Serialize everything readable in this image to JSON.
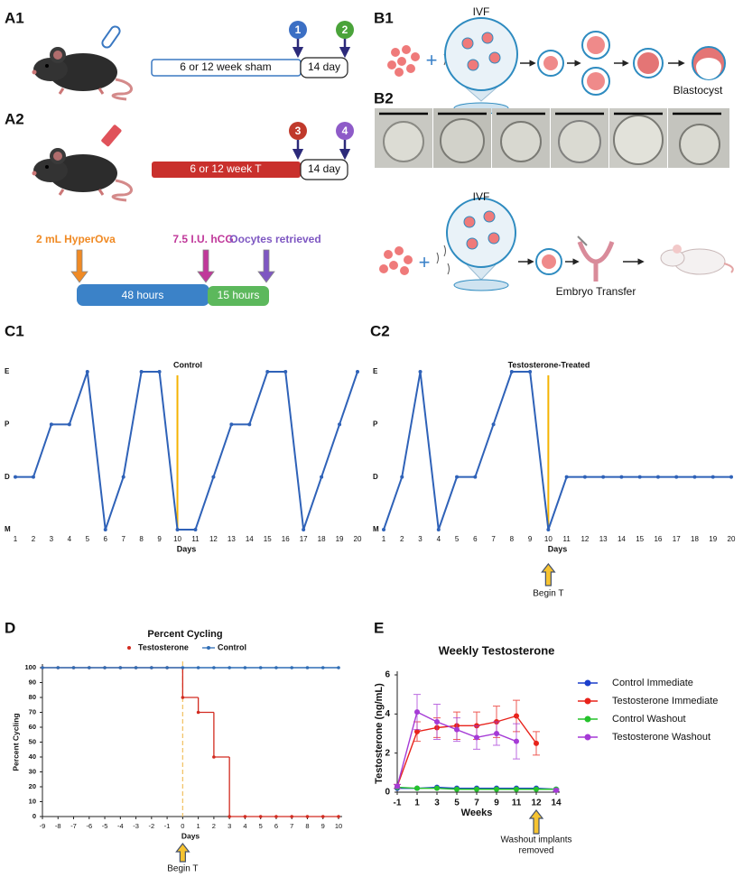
{
  "panels": {
    "a1": "A1",
    "a2": "A2",
    "b1": "B1",
    "b2": "B2",
    "c1": "C1",
    "c2": "C2",
    "d": "D",
    "e": "E"
  },
  "timeline": {
    "sham": "6 or 12 week sham",
    "treated": "6 or 12 week T",
    "washout_sham": "14 day",
    "washout_treated": "14 day",
    "steps": [
      "1",
      "2",
      "3",
      "4"
    ]
  },
  "superovulation": {
    "hyperova": "2 mL HyperOva",
    "hcg": "7.5 I.U. hCG",
    "retrieval": "Oocytes retrieved",
    "phase1": "48 hours",
    "phase2": "15 hours"
  },
  "ivf": {
    "top_label": "IVF",
    "blastocyst": "Blastocyst",
    "bottom_label": "IVF",
    "transfer": "Embryo Transfer"
  },
  "chart_data": [
    {
      "type": "line",
      "title": "Control",
      "x": [
        1,
        2,
        3,
        4,
        5,
        6,
        7,
        8,
        9,
        10,
        11,
        12,
        13,
        14,
        15,
        16,
        17,
        18,
        19,
        20
      ],
      "values": [
        1,
        1,
        2,
        2,
        3,
        0,
        1,
        3,
        3,
        0,
        0,
        1,
        2,
        2,
        3,
        3,
        0,
        1,
        2,
        3
      ],
      "color": "#2f62b8",
      "xlim": [
        1,
        20
      ],
      "xticks": [
        1,
        2,
        3,
        4,
        5,
        6,
        7,
        8,
        9,
        10,
        11,
        12,
        13,
        14,
        15,
        16,
        17,
        18,
        19,
        20
      ],
      "ylim": [
        0,
        3
      ],
      "yticks": [
        {
          "value": 0,
          "label": "M"
        },
        {
          "value": 1,
          "label": "D"
        },
        {
          "value": 2,
          "label": "P"
        },
        {
          "value": 3,
          "label": "E"
        }
      ],
      "xlabel": "Days",
      "marker_x": 10,
      "marker_color": "#f5b301"
    },
    {
      "type": "line",
      "title": "Testosterone-Treated",
      "x": [
        1,
        2,
        3,
        4,
        5,
        6,
        7,
        8,
        9,
        10,
        11,
        12,
        13,
        14,
        15,
        16,
        17,
        18,
        19,
        20
      ],
      "values": [
        0,
        1,
        3,
        0,
        1,
        1,
        2,
        3,
        3,
        0,
        1,
        1,
        1,
        1,
        1,
        1,
        1,
        1,
        1,
        1
      ],
      "color": "#2f62b8",
      "xlim": [
        1,
        20
      ],
      "xticks": [
        1,
        2,
        3,
        4,
        5,
        6,
        7,
        8,
        9,
        10,
        11,
        12,
        13,
        14,
        15,
        16,
        17,
        18,
        19,
        20
      ],
      "ylim": [
        0,
        3
      ],
      "yticks": [
        {
          "value": 0,
          "label": "M"
        },
        {
          "value": 1,
          "label": "D"
        },
        {
          "value": 2,
          "label": "P"
        },
        {
          "value": 3,
          "label": "E"
        }
      ],
      "xlabel": "Days",
      "marker_x": 10,
      "marker_color": "#f5b301",
      "annotation": "Begin T"
    },
    {
      "type": "line",
      "title": "Percent Cycling",
      "x": [
        -9,
        -8,
        -7,
        -6,
        -5,
        -4,
        -3,
        -2,
        -1,
        0,
        1,
        2,
        3,
        4,
        5,
        6,
        7,
        8,
        9,
        10
      ],
      "series": [
        {
          "name": "Testosterone",
          "color": "#d22b20",
          "drawstyle": "steps-post",
          "values": [
            100,
            100,
            100,
            100,
            100,
            100,
            100,
            100,
            100,
            80,
            70,
            40,
            0,
            0,
            0,
            0,
            0,
            0,
            0,
            0
          ]
        },
        {
          "name": "Control",
          "color": "#2f6db5",
          "values": [
            100,
            100,
            100,
            100,
            100,
            100,
            100,
            100,
            100,
            100,
            100,
            100,
            100,
            100,
            100,
            100,
            100,
            100,
            100,
            100
          ]
        }
      ],
      "xlim": [
        -9,
        10
      ],
      "xticks": [
        -9,
        -8,
        -7,
        -6,
        -5,
        -4,
        -3,
        -2,
        -1,
        0,
        1,
        2,
        3,
        4,
        5,
        6,
        7,
        8,
        9,
        10
      ],
      "ylim": [
        0,
        100
      ],
      "yticks": [
        0,
        10,
        20,
        30,
        40,
        50,
        60,
        70,
        80,
        90,
        100
      ],
      "xlabel": "Days",
      "ylabel": "Percent Cycling",
      "legend": "top",
      "axes": true,
      "marker_x": 0,
      "marker_color": "#f2c46a",
      "marker_style": "dashed",
      "annotation": "Begin T"
    },
    {
      "type": "line",
      "title": "Weekly Testosterone",
      "categories": [
        "-1",
        "1",
        "3",
        "5",
        "7",
        "9",
        "11",
        "12",
        "14"
      ],
      "series": [
        {
          "name": "Control Immediate",
          "color": "#1c3fcc",
          "values": [
            0.2,
            0.2,
            0.25,
            0.2,
            0.2,
            0.2,
            0.2,
            0.2,
            0.15
          ]
        },
        {
          "name": "Testosterone Immediate",
          "color": "#e8231b",
          "values": [
            0.3,
            3.1,
            3.3,
            3.4,
            3.4,
            3.6,
            3.9,
            2.5,
            null
          ],
          "errors": [
            0.1,
            0.5,
            0.5,
            0.7,
            0.7,
            0.8,
            0.8,
            0.6,
            null
          ]
        },
        {
          "name": "Control Washout",
          "color": "#25c22c",
          "values": [
            0.25,
            0.2,
            0.2,
            0.15,
            0.15,
            0.15,
            0.15,
            0.15,
            0.15
          ]
        },
        {
          "name": "Testosterone Washout",
          "color": "#a53ad6",
          "values": [
            0.3,
            4.1,
            3.6,
            3.2,
            2.8,
            3.0,
            2.6,
            null,
            0.1
          ],
          "errors": [
            0.1,
            0.9,
            0.9,
            0.6,
            0.6,
            0.6,
            0.9,
            null,
            0.05
          ]
        }
      ],
      "ylim": [
        0,
        6
      ],
      "yticks": [
        0,
        2,
        4,
        6
      ],
      "xlabel": "Weeks",
      "ylabel": "Testosterone (ng/mL)",
      "legend": "right",
      "axes": true,
      "annotation": [
        "Washout implants",
        "removed"
      ]
    }
  ]
}
